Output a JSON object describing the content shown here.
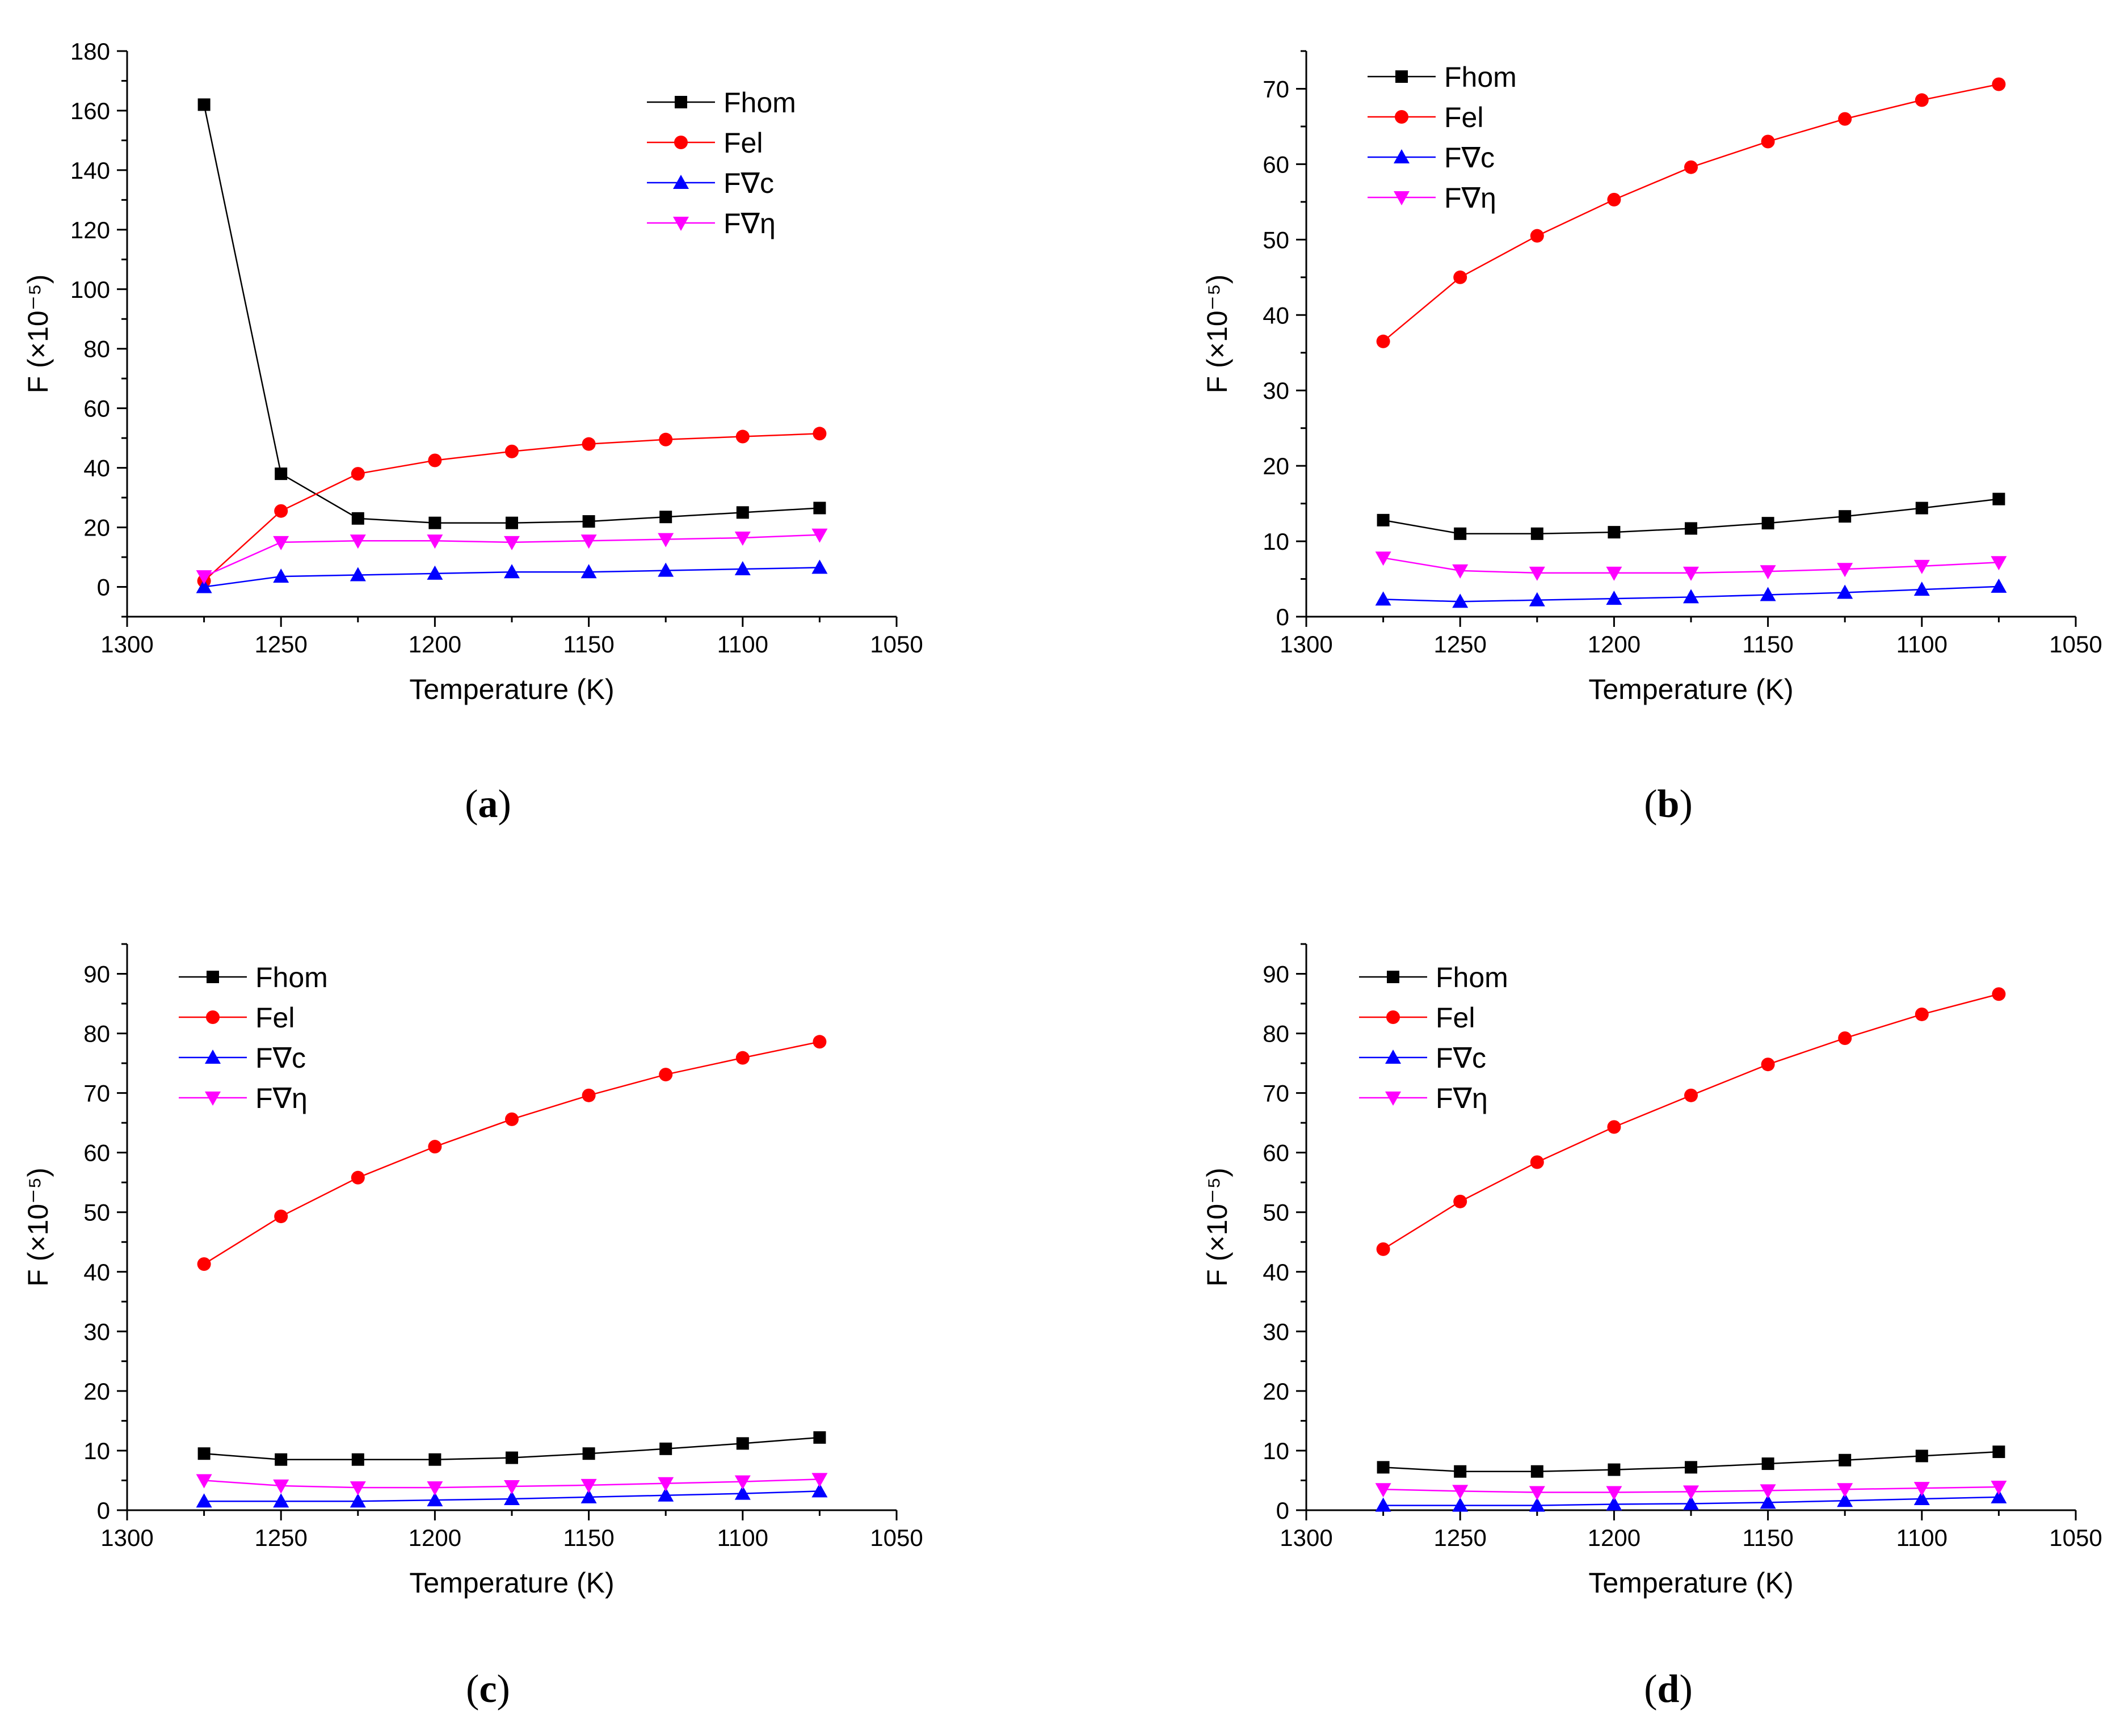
{
  "chart_data": [
    {
      "type": "line",
      "panel_label": "a",
      "xlabel": "Temperature (K)",
      "ylabel": "F (×10⁻⁵)",
      "xlim": [
        1300,
        1050
      ],
      "ylim": [
        -10,
        180
      ],
      "xticks": [
        1300,
        1250,
        1200,
        1150,
        1100,
        1050
      ],
      "yticks": [
        0,
        20,
        40,
        60,
        80,
        100,
        120,
        140,
        160,
        180
      ],
      "legend_position": "top-right",
      "x": [
        1275,
        1250,
        1225,
        1200,
        1175,
        1150,
        1125,
        1100,
        1075
      ],
      "series": [
        {
          "name": "Fhom",
          "values": [
            162,
            38,
            23,
            21.5,
            21.5,
            22,
            23.5,
            25,
            26.5
          ]
        },
        {
          "name": "Fel",
          "values": [
            2,
            25.5,
            38,
            42.5,
            45.5,
            48,
            49.5,
            50.5,
            51.5
          ]
        },
        {
          "name": "F∇c",
          "values": [
            0,
            3.5,
            4,
            4.5,
            5,
            5,
            5.5,
            6,
            6.5
          ]
        },
        {
          "name": "F∇η",
          "values": [
            3.5,
            15,
            15.5,
            15.5,
            15,
            15.5,
            16,
            16.5,
            17.5
          ]
        }
      ]
    },
    {
      "type": "line",
      "panel_label": "b",
      "xlabel": "Temperature (K)",
      "ylabel": "F (×10⁻⁵)",
      "xlim": [
        1300,
        1050
      ],
      "ylim": [
        0,
        75
      ],
      "xticks": [
        1300,
        1250,
        1200,
        1150,
        1100,
        1050
      ],
      "yticks": [
        0,
        10,
        20,
        30,
        40,
        50,
        60,
        70
      ],
      "legend_position": "top-left",
      "x": [
        1275,
        1250,
        1225,
        1200,
        1175,
        1150,
        1125,
        1100,
        1075
      ],
      "series": [
        {
          "name": "Fhom",
          "values": [
            12.8,
            11,
            11,
            11.2,
            11.7,
            12.4,
            13.3,
            14.4,
            15.6
          ]
        },
        {
          "name": "Fel",
          "values": [
            36.5,
            45,
            50.5,
            55.3,
            59.6,
            63,
            66,
            68.5,
            70.6
          ]
        },
        {
          "name": "F∇c",
          "values": [
            2.3,
            2,
            2.2,
            2.4,
            2.6,
            2.9,
            3.2,
            3.6,
            4
          ]
        },
        {
          "name": "F∇η",
          "values": [
            7.8,
            6.1,
            5.8,
            5.8,
            5.8,
            6,
            6.3,
            6.7,
            7.2
          ]
        }
      ]
    },
    {
      "type": "line",
      "panel_label": "c",
      "xlabel": "Temperature (K)",
      "ylabel": "F (×10⁻⁵)",
      "xlim": [
        1300,
        1050
      ],
      "ylim": [
        0,
        95
      ],
      "xticks": [
        1300,
        1250,
        1200,
        1150,
        1100,
        1050
      ],
      "yticks": [
        0,
        10,
        20,
        30,
        40,
        50,
        60,
        70,
        80,
        90
      ],
      "legend_position": "top-left",
      "x": [
        1275,
        1250,
        1225,
        1200,
        1175,
        1150,
        1125,
        1100,
        1075
      ],
      "series": [
        {
          "name": "Fhom",
          "values": [
            9.5,
            8.5,
            8.5,
            8.5,
            8.8,
            9.5,
            10.3,
            11.2,
            12.2
          ]
        },
        {
          "name": "Fel",
          "values": [
            41.3,
            49.3,
            55.8,
            61,
            65.6,
            69.6,
            73.1,
            75.9,
            78.6
          ]
        },
        {
          "name": "F∇c",
          "values": [
            1.5,
            1.5,
            1.5,
            1.7,
            1.9,
            2.2,
            2.5,
            2.8,
            3.2
          ]
        },
        {
          "name": "F∇η",
          "values": [
            5,
            4.1,
            3.8,
            3.8,
            4,
            4.2,
            4.5,
            4.8,
            5.2
          ]
        }
      ]
    },
    {
      "type": "line",
      "panel_label": "d",
      "xlabel": "Temperature (K)",
      "ylabel": "F (×10⁻⁵)",
      "xlim": [
        1300,
        1050
      ],
      "ylim": [
        0,
        95
      ],
      "xticks": [
        1300,
        1250,
        1200,
        1150,
        1100,
        1050
      ],
      "yticks": [
        0,
        10,
        20,
        30,
        40,
        50,
        60,
        70,
        80,
        90
      ],
      "legend_position": "top-left",
      "x": [
        1275,
        1250,
        1225,
        1200,
        1175,
        1150,
        1125,
        1100,
        1075
      ],
      "series": [
        {
          "name": "Fhom",
          "values": [
            7.2,
            6.5,
            6.5,
            6.8,
            7.2,
            7.8,
            8.4,
            9.1,
            9.8
          ]
        },
        {
          "name": "Fel",
          "values": [
            43.8,
            51.8,
            58.4,
            64.3,
            69.6,
            74.8,
            79.2,
            83.2,
            86.6
          ]
        },
        {
          "name": "F∇c",
          "values": [
            0.8,
            0.8,
            0.8,
            1,
            1.1,
            1.3,
            1.6,
            1.9,
            2.2
          ]
        },
        {
          "name": "F∇η",
          "values": [
            3.5,
            3.2,
            3,
            3,
            3.1,
            3.3,
            3.5,
            3.7,
            3.9
          ]
        }
      ]
    }
  ],
  "series_styles": [
    {
      "color": "#000000",
      "marker": "square"
    },
    {
      "color": "#ff0000",
      "marker": "circle"
    },
    {
      "color": "#0000ff",
      "marker": "triangle-up"
    },
    {
      "color": "#ff00ff",
      "marker": "triangle-down"
    }
  ]
}
